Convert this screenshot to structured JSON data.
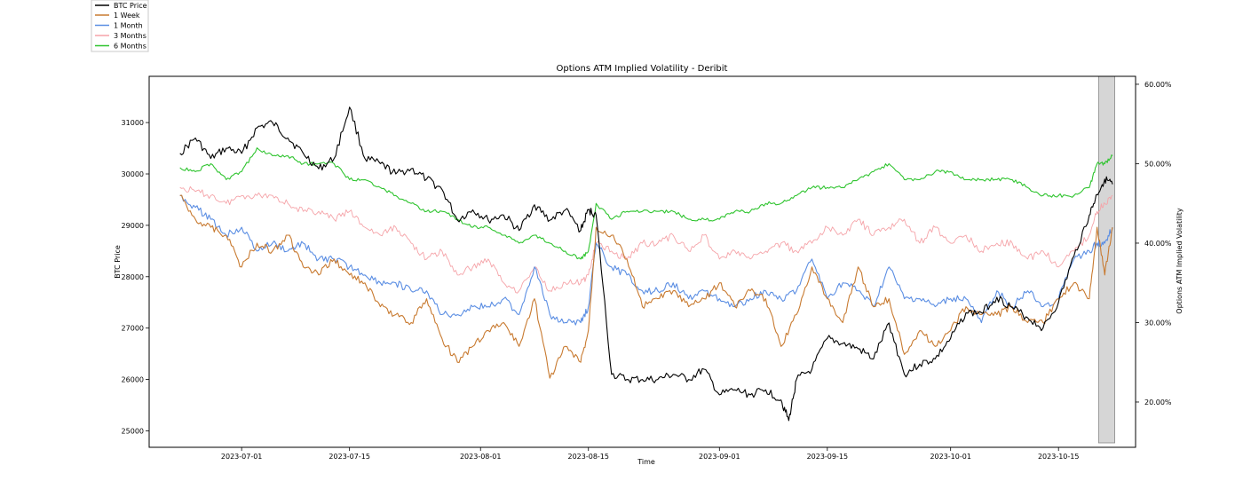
{
  "chart_data": {
    "type": "line",
    "title": "Options ATM Implied Volatility - Deribit",
    "xlabel": "Time",
    "ylabel_left": "BTC Price",
    "ylabel_right": "Options ATM Implied Volatility",
    "x_ticks": [
      "2023-07-01",
      "2023-07-15",
      "2023-08-01",
      "2023-08-15",
      "2023-09-01",
      "2023-09-15",
      "2023-10-01",
      "2023-10-15"
    ],
    "x_tick_days": [
      8,
      22,
      39,
      53,
      70,
      84,
      100,
      114
    ],
    "x_range_days": [
      -4,
      124
    ],
    "note_x": "day 0 = 2023-06-23",
    "y_left_ticks": [
      25000,
      26000,
      27000,
      28000,
      29000,
      30000,
      31000
    ],
    "y_left_range": [
      24680,
      31900
    ],
    "y_right_ticks": [
      "20.00%",
      "30.00%",
      "40.00%",
      "50.00%",
      "60.00%"
    ],
    "y_right_tick_values": [
      20,
      30,
      40,
      50,
      60
    ],
    "y_right_range": [
      14.3,
      61.0
    ],
    "highlight_span_days": [
      119.2,
      121.3
    ],
    "legend_position": "outside-top-left",
    "series": [
      {
        "name": "BTC Price",
        "color": "#000000",
        "axis": "left",
        "x": [
          0,
          2,
          4,
          6,
          8,
          10,
          12,
          14,
          16,
          18,
          20,
          22,
          24,
          26,
          28,
          30,
          32,
          34,
          36,
          38,
          40,
          42,
          44,
          46,
          48,
          50,
          52,
          53,
          54,
          56,
          58,
          60,
          62,
          64,
          66,
          68,
          70,
          72,
          74,
          76,
          78,
          79,
          80,
          82,
          84,
          86,
          88,
          90,
          92,
          94,
          96,
          98,
          100,
          102,
          104,
          106,
          108,
          110,
          112,
          114,
          116,
          118,
          119,
          120,
          121
        ],
        "values": [
          30400,
          30700,
          30300,
          30500,
          30400,
          30900,
          31000,
          30700,
          30400,
          30100,
          30300,
          31300,
          30300,
          30200,
          30000,
          30100,
          29900,
          29700,
          29100,
          29300,
          29100,
          29200,
          28900,
          29400,
          29100,
          29300,
          28900,
          29300,
          29200,
          26100,
          26000,
          26000,
          26000,
          26100,
          26000,
          26200,
          25700,
          25800,
          25700,
          25800,
          25600,
          25200,
          26000,
          26200,
          26800,
          26700,
          26600,
          26400,
          27100,
          26100,
          26300,
          26400,
          26800,
          27300,
          27300,
          27600,
          27400,
          27200,
          27000,
          27500,
          28400,
          29200,
          29600,
          29900,
          29800
        ]
      },
      {
        "name": "1 Week",
        "color": "#c87a30",
        "axis": "right",
        "x": [
          0,
          2,
          4,
          6,
          8,
          10,
          12,
          14,
          16,
          18,
          20,
          22,
          24,
          26,
          28,
          30,
          32,
          34,
          36,
          38,
          40,
          42,
          44,
          46,
          48,
          50,
          52,
          53,
          54,
          56,
          58,
          60,
          62,
          64,
          66,
          68,
          70,
          72,
          74,
          76,
          78,
          80,
          82,
          84,
          86,
          88,
          90,
          92,
          94,
          96,
          98,
          100,
          102,
          104,
          106,
          108,
          110,
          112,
          114,
          116,
          118,
          119,
          120,
          121
        ],
        "values": [
          46,
          43,
          42,
          41,
          37,
          40,
          39,
          41,
          37,
          36,
          38,
          36,
          35,
          32,
          31,
          30,
          33,
          28,
          25,
          27,
          29,
          30,
          27,
          33,
          23,
          27,
          25,
          29,
          42,
          41,
          38,
          32,
          33,
          34,
          32,
          33,
          35,
          32,
          34,
          33,
          27,
          31,
          37,
          33,
          30,
          37,
          32,
          33,
          26,
          29,
          27,
          29,
          32,
          31,
          31,
          32,
          30,
          30,
          33,
          35,
          33,
          42,
          36,
          42
        ]
      },
      {
        "name": "1 Month",
        "color": "#5b8ee3",
        "axis": "right",
        "x": [
          0,
          2,
          4,
          6,
          8,
          10,
          12,
          14,
          16,
          18,
          20,
          22,
          24,
          26,
          28,
          30,
          32,
          34,
          36,
          38,
          40,
          42,
          44,
          46,
          48,
          50,
          52,
          53,
          54,
          56,
          58,
          60,
          62,
          64,
          66,
          68,
          70,
          72,
          74,
          76,
          78,
          80,
          82,
          84,
          86,
          88,
          90,
          92,
          94,
          96,
          98,
          100,
          102,
          104,
          106,
          108,
          110,
          112,
          114,
          116,
          118,
          119,
          120,
          121
        ],
        "values": [
          46,
          44.5,
          43,
          41,
          42,
          39,
          40,
          39,
          40,
          38,
          38,
          37,
          36,
          35,
          35,
          34,
          34,
          31,
          31,
          32,
          32,
          33,
          31,
          37,
          31,
          30,
          30,
          32,
          40,
          37,
          36,
          34,
          34,
          35,
          33,
          34,
          33,
          32,
          33,
          34,
          33,
          34,
          38,
          33,
          35,
          34,
          32,
          37,
          33,
          33,
          32,
          33,
          33,
          30,
          34,
          32,
          34,
          32,
          33,
          38,
          39,
          40,
          40,
          42
        ]
      },
      {
        "name": "3 Months",
        "color": "#f5a3a8",
        "axis": "right",
        "x": [
          0,
          2,
          4,
          6,
          8,
          10,
          12,
          14,
          16,
          18,
          20,
          22,
          24,
          26,
          28,
          30,
          32,
          34,
          36,
          38,
          40,
          42,
          44,
          46,
          48,
          50,
          52,
          53,
          54,
          56,
          58,
          60,
          62,
          64,
          66,
          68,
          70,
          72,
          74,
          76,
          78,
          80,
          82,
          84,
          86,
          88,
          90,
          92,
          94,
          96,
          98,
          100,
          102,
          104,
          106,
          108,
          110,
          112,
          114,
          116,
          118,
          119,
          120,
          121
        ],
        "values": [
          47,
          46.5,
          46,
          45,
          46,
          46,
          46,
          45,
          44,
          44,
          43,
          44,
          42,
          41,
          42,
          40,
          38,
          39,
          36,
          37,
          38,
          35,
          34,
          37,
          34,
          35,
          35,
          36,
          40,
          39,
          38,
          40,
          40,
          41,
          39,
          41,
          38,
          39,
          38,
          39,
          40,
          39,
          40,
          42,
          41,
          43,
          41,
          42,
          43,
          40,
          42,
          40,
          41,
          39,
          40,
          40,
          38,
          39,
          37,
          39,
          41,
          44,
          45,
          46
        ]
      },
      {
        "name": "6 Months",
        "color": "#2fc42f",
        "axis": "right",
        "x": [
          0,
          2,
          4,
          6,
          8,
          10,
          12,
          14,
          16,
          18,
          20,
          22,
          24,
          26,
          28,
          30,
          32,
          34,
          36,
          38,
          40,
          42,
          44,
          46,
          48,
          50,
          52,
          53,
          54,
          56,
          58,
          60,
          62,
          64,
          66,
          68,
          70,
          72,
          74,
          76,
          78,
          80,
          82,
          84,
          86,
          88,
          90,
          92,
          94,
          96,
          98,
          100,
          102,
          104,
          106,
          108,
          110,
          112,
          114,
          116,
          118,
          119,
          120,
          121
        ],
        "values": [
          49.5,
          49,
          50,
          48,
          49,
          52,
          51,
          51,
          50,
          50,
          50,
          48,
          48,
          47,
          46,
          45,
          44,
          44,
          43,
          42,
          42,
          41,
          40,
          41,
          40,
          39,
          38,
          39,
          45,
          43,
          44,
          44,
          44,
          44,
          43,
          43,
          43,
          44,
          44,
          45,
          45,
          46,
          47,
          47,
          47,
          48,
          49,
          50,
          48,
          48,
          49,
          49,
          48,
          48,
          48,
          48,
          47,
          46,
          46,
          46,
          47,
          50,
          50,
          51
        ]
      }
    ]
  }
}
